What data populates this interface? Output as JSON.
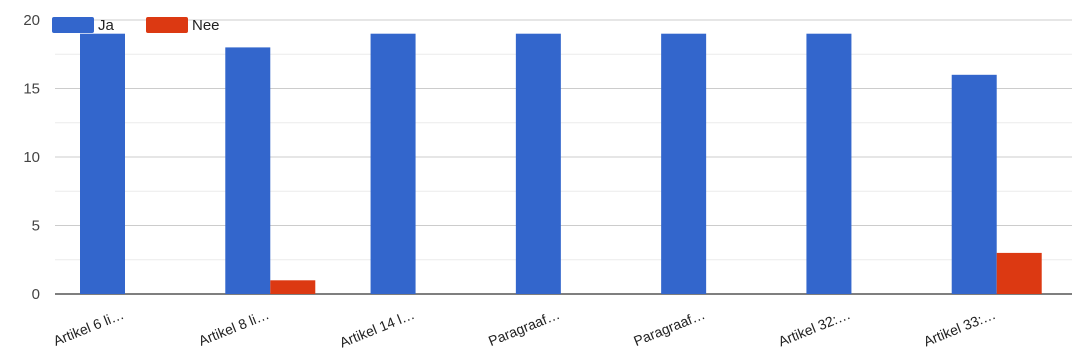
{
  "chart_data": {
    "type": "bar",
    "categories": [
      "Artikel 6 li…",
      "Artikel 8 li…",
      "Artikel 14 l…",
      "Paragraaf…",
      "Paragraaf…",
      "Artikel 32:…",
      "Artikel 33:…"
    ],
    "series": [
      {
        "name": "Ja",
        "color": "#3366cc",
        "values": [
          19,
          18,
          19,
          19,
          19,
          19,
          16
        ]
      },
      {
        "name": "Nee",
        "color": "#dc3912",
        "values": [
          0,
          1,
          0,
          0,
          0,
          0,
          3
        ]
      }
    ],
    "y_ticks": [
      "0",
      "5",
      "10",
      "15",
      "20"
    ],
    "ylim": [
      0,
      20
    ],
    "legend_position": "top-left",
    "grid": true
  }
}
